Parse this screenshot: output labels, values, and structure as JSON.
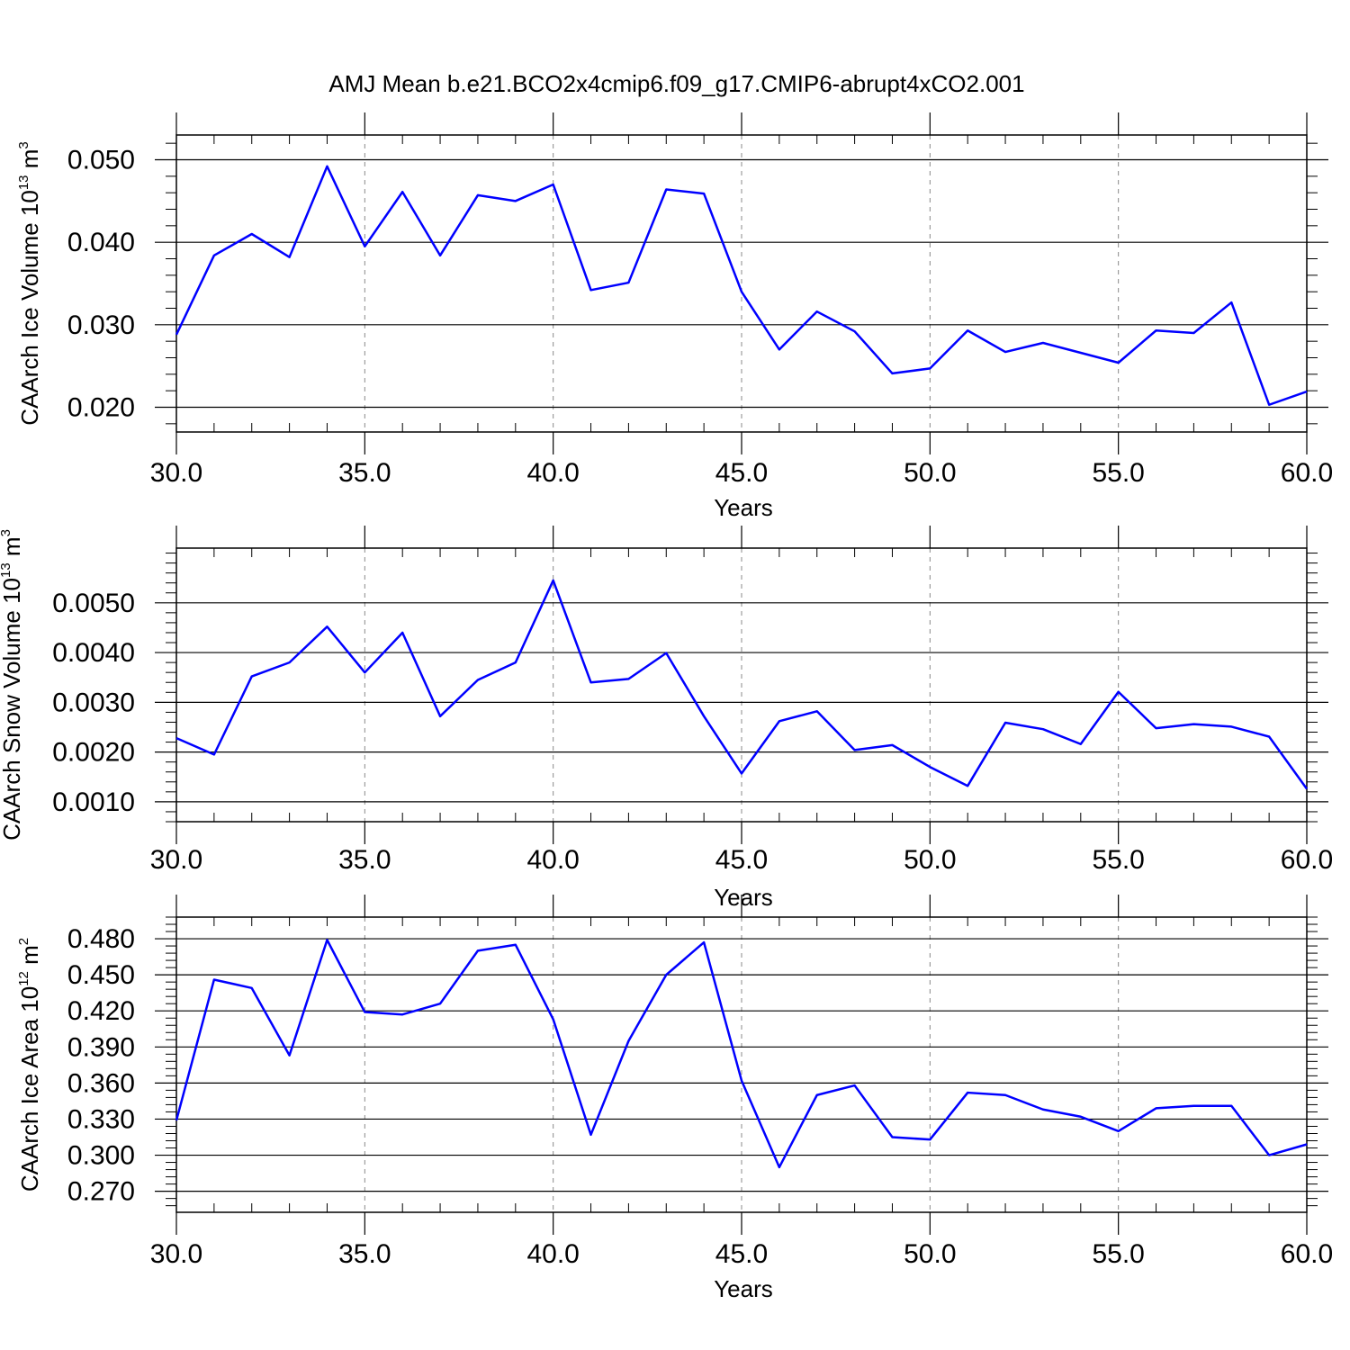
{
  "figure_title": "AMJ Mean b.e21.BCO2x4cmip6.f09_g17.CMIP6-abrupt4xCO2.001",
  "colors": {
    "line": "#0000ff",
    "axis": "#000000",
    "grid": "#888888"
  },
  "chart_data": [
    {
      "type": "line",
      "xlabel": "Years",
      "ylabel": {
        "prefix": "CAArch Ice Volume 10",
        "exp": "13",
        "unit": " m",
        "unit_exp": "3"
      },
      "xlim": [
        30,
        60
      ],
      "ylim": [
        0.017,
        0.053
      ],
      "grid": "vertical dashed at major x ticks",
      "xticks": [
        30,
        35,
        40,
        45,
        50,
        55,
        60
      ],
      "xtick_labels": [
        "30.0",
        "35.0",
        "40.0",
        "45.0",
        "50.0",
        "55.0",
        "60.0"
      ],
      "yticks": [
        0.02,
        0.03,
        0.04,
        0.05
      ],
      "ytick_labels": [
        "0.020",
        "0.030",
        "0.040",
        "0.050"
      ],
      "y_minor_step": 0.002,
      "x": [
        30,
        31,
        32,
        33,
        34,
        35,
        36,
        37,
        38,
        39,
        40,
        41,
        42,
        43,
        44,
        45,
        46,
        47,
        48,
        49,
        50,
        51,
        52,
        53,
        54,
        55,
        56,
        57,
        58,
        59,
        60
      ],
      "series": [
        {
          "values": [
            0.0288,
            0.0384,
            0.041,
            0.0382,
            0.0492,
            0.0395,
            0.0461,
            0.0384,
            0.0457,
            0.045,
            0.047,
            0.0342,
            0.0351,
            0.0464,
            0.0459,
            0.034,
            0.027,
            0.0316,
            0.0292,
            0.0241,
            0.0247,
            0.0293,
            0.0267,
            0.0278,
            0.0266,
            0.0254,
            0.0293,
            0.029,
            0.0327,
            0.0203,
            0.0219
          ]
        }
      ]
    },
    {
      "type": "line",
      "xlabel": "Years",
      "ylabel": {
        "prefix": "CAArch Snow Volume 10",
        "exp": "13",
        "unit": " m",
        "unit_exp": "3"
      },
      "xlim": [
        30,
        60
      ],
      "ylim": [
        0.0006,
        0.0061
      ],
      "grid": "vertical dashed at major x ticks",
      "xticks": [
        30,
        35,
        40,
        45,
        50,
        55,
        60
      ],
      "xtick_labels": [
        "30.0",
        "35.0",
        "40.0",
        "45.0",
        "50.0",
        "55.0",
        "60.0"
      ],
      "yticks": [
        0.001,
        0.002,
        0.003,
        0.004,
        0.005
      ],
      "ytick_labels": [
        "0.0010",
        "0.0020",
        "0.0030",
        "0.0040",
        "0.0050"
      ],
      "y_minor_step": 0.0002,
      "x": [
        30,
        31,
        32,
        33,
        34,
        35,
        36,
        37,
        38,
        39,
        40,
        41,
        42,
        43,
        44,
        45,
        46,
        47,
        48,
        49,
        50,
        51,
        52,
        53,
        54,
        55,
        56,
        57,
        58,
        59,
        60
      ],
      "series": [
        {
          "values": [
            0.00228,
            0.00195,
            0.00352,
            0.0038,
            0.00452,
            0.0036,
            0.0044,
            0.00272,
            0.00345,
            0.0038,
            0.00545,
            0.0034,
            0.00347,
            0.00399,
            0.00272,
            0.00157,
            0.00262,
            0.00282,
            0.00204,
            0.00214,
            0.0017,
            0.00132,
            0.00259,
            0.00246,
            0.00216,
            0.00321,
            0.00248,
            0.00256,
            0.00251,
            0.00231,
            0.00126
          ]
        }
      ]
    },
    {
      "type": "line",
      "xlabel": "Years",
      "ylabel": {
        "prefix": "CAArch Ice Area 10",
        "exp": "12",
        "unit": " m",
        "unit_exp": "2"
      },
      "xlim": [
        30,
        60
      ],
      "ylim": [
        0.2525,
        0.498
      ],
      "grid": "vertical dashed at major x ticks",
      "xticks": [
        30,
        35,
        40,
        45,
        50,
        55,
        60
      ],
      "xtick_labels": [
        "30.0",
        "35.0",
        "40.0",
        "45.0",
        "50.0",
        "55.0",
        "60.0"
      ],
      "yticks": [
        0.27,
        0.3,
        0.33,
        0.36,
        0.39,
        0.42,
        0.45,
        0.48
      ],
      "ytick_labels": [
        "0.270",
        "0.300",
        "0.330",
        "0.360",
        "0.390",
        "0.420",
        "0.450",
        "0.480"
      ],
      "y_minor_step": 0.006,
      "x": [
        30,
        31,
        32,
        33,
        34,
        35,
        36,
        37,
        38,
        39,
        40,
        41,
        42,
        43,
        44,
        45,
        46,
        47,
        48,
        49,
        50,
        51,
        52,
        53,
        54,
        55,
        56,
        57,
        58,
        59,
        60
      ],
      "series": [
        {
          "values": [
            0.329,
            0.446,
            0.439,
            0.383,
            0.479,
            0.419,
            0.417,
            0.426,
            0.47,
            0.475,
            0.413,
            0.317,
            0.395,
            0.45,
            0.477,
            0.362,
            0.29,
            0.35,
            0.358,
            0.315,
            0.313,
            0.352,
            0.35,
            0.338,
            0.332,
            0.32,
            0.339,
            0.341,
            0.341,
            0.3,
            0.309
          ]
        }
      ]
    }
  ]
}
